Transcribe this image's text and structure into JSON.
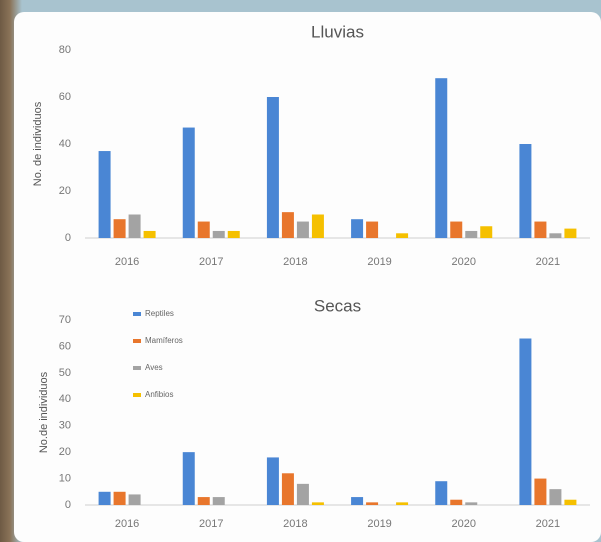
{
  "chart_data": [
    {
      "type": "bar",
      "title": "Lluvias",
      "y_label": "No. de individuos",
      "categories": [
        "2016",
        "2017",
        "2018",
        "2019",
        "2020",
        "2021"
      ],
      "series": [
        {
          "color": "#4a86d4",
          "values": [
            37,
            47,
            60,
            8,
            68,
            40
          ]
        },
        {
          "color": "#e8762c",
          "values": [
            8,
            7,
            11,
            7,
            7,
            7
          ]
        },
        {
          "color": "#a3a3a3",
          "values": [
            10,
            3,
            7,
            0,
            3,
            2
          ]
        },
        {
          "color": "#f5c000",
          "values": [
            3,
            3,
            10,
            2,
            5,
            4
          ]
        }
      ],
      "ylim": [
        0,
        80
      ],
      "yticks": [
        0,
        20,
        40,
        60,
        80
      ],
      "grid": false
    },
    {
      "type": "bar",
      "title": "Secas",
      "y_label": "No.de individuos",
      "categories": [
        "2016",
        "2017",
        "2018",
        "2019",
        "2020",
        "2021"
      ],
      "series": [
        {
          "name": "Reptiles",
          "color": "#4a86d4",
          "values": [
            5,
            20,
            18,
            3,
            9,
            63
          ]
        },
        {
          "name": "Mamíferos",
          "color": "#e8762c",
          "values": [
            5,
            3,
            12,
            1,
            2,
            10
          ]
        },
        {
          "name": "Aves",
          "color": "#a3a3a3",
          "values": [
            4,
            3,
            8,
            0,
            1,
            6
          ]
        },
        {
          "name": "Anfibios",
          "color": "#f5c000",
          "values": [
            0,
            0,
            1,
            1,
            0,
            2
          ]
        }
      ],
      "ylim": [
        0,
        70
      ],
      "yticks": [
        0,
        10,
        20,
        30,
        40,
        50,
        60,
        70
      ],
      "grid": false,
      "legend": "upper left"
    }
  ]
}
